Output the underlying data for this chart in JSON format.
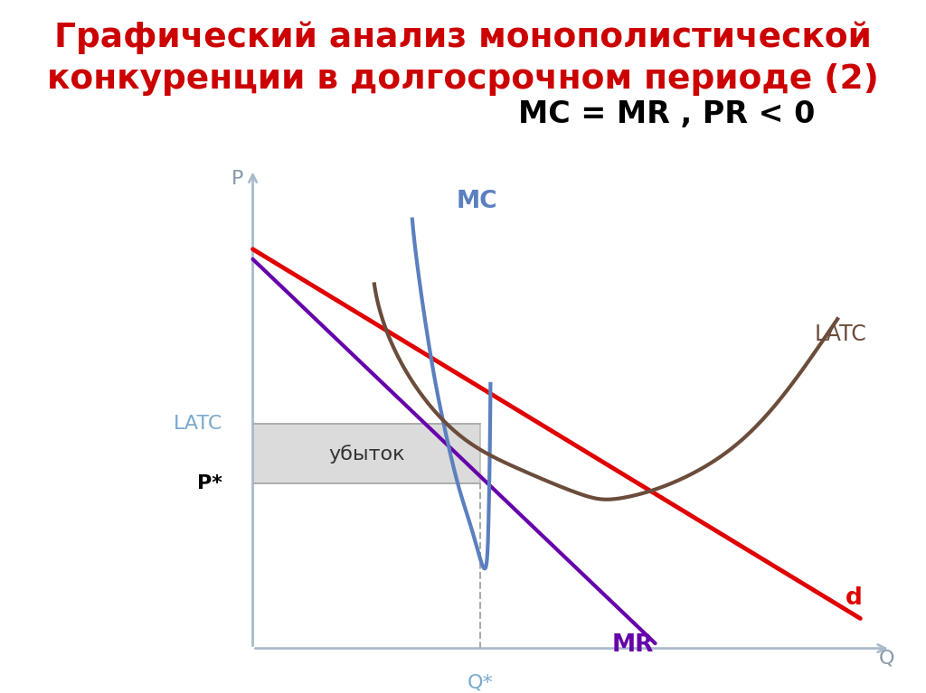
{
  "title_line1": "Графический анализ монополистической",
  "title_line2": "конкуренции в долгосрочном периоде (2)",
  "subtitle": "MC = MR , PR < 0",
  "title_color": "#cc0000",
  "subtitle_color": "#000000",
  "background_color": "#ffffff",
  "curve_colors": {
    "MC": "#5b7fbf",
    "LATC": "#6b4c3b",
    "d": "#e00000",
    "MR": "#6600aa",
    "loss_fill": "#c8c8c8"
  },
  "axis_color": "#aabbcc",
  "label_LATC_left": "LATC",
  "label_Pstar": "P*",
  "label_Qstar": "Q*",
  "label_Q": "Q",
  "label_P": "P",
  "label_MC": "MC",
  "label_LATC_right": "LATC",
  "label_d": "d",
  "label_MR": "MR",
  "label_loss": "убыток"
}
